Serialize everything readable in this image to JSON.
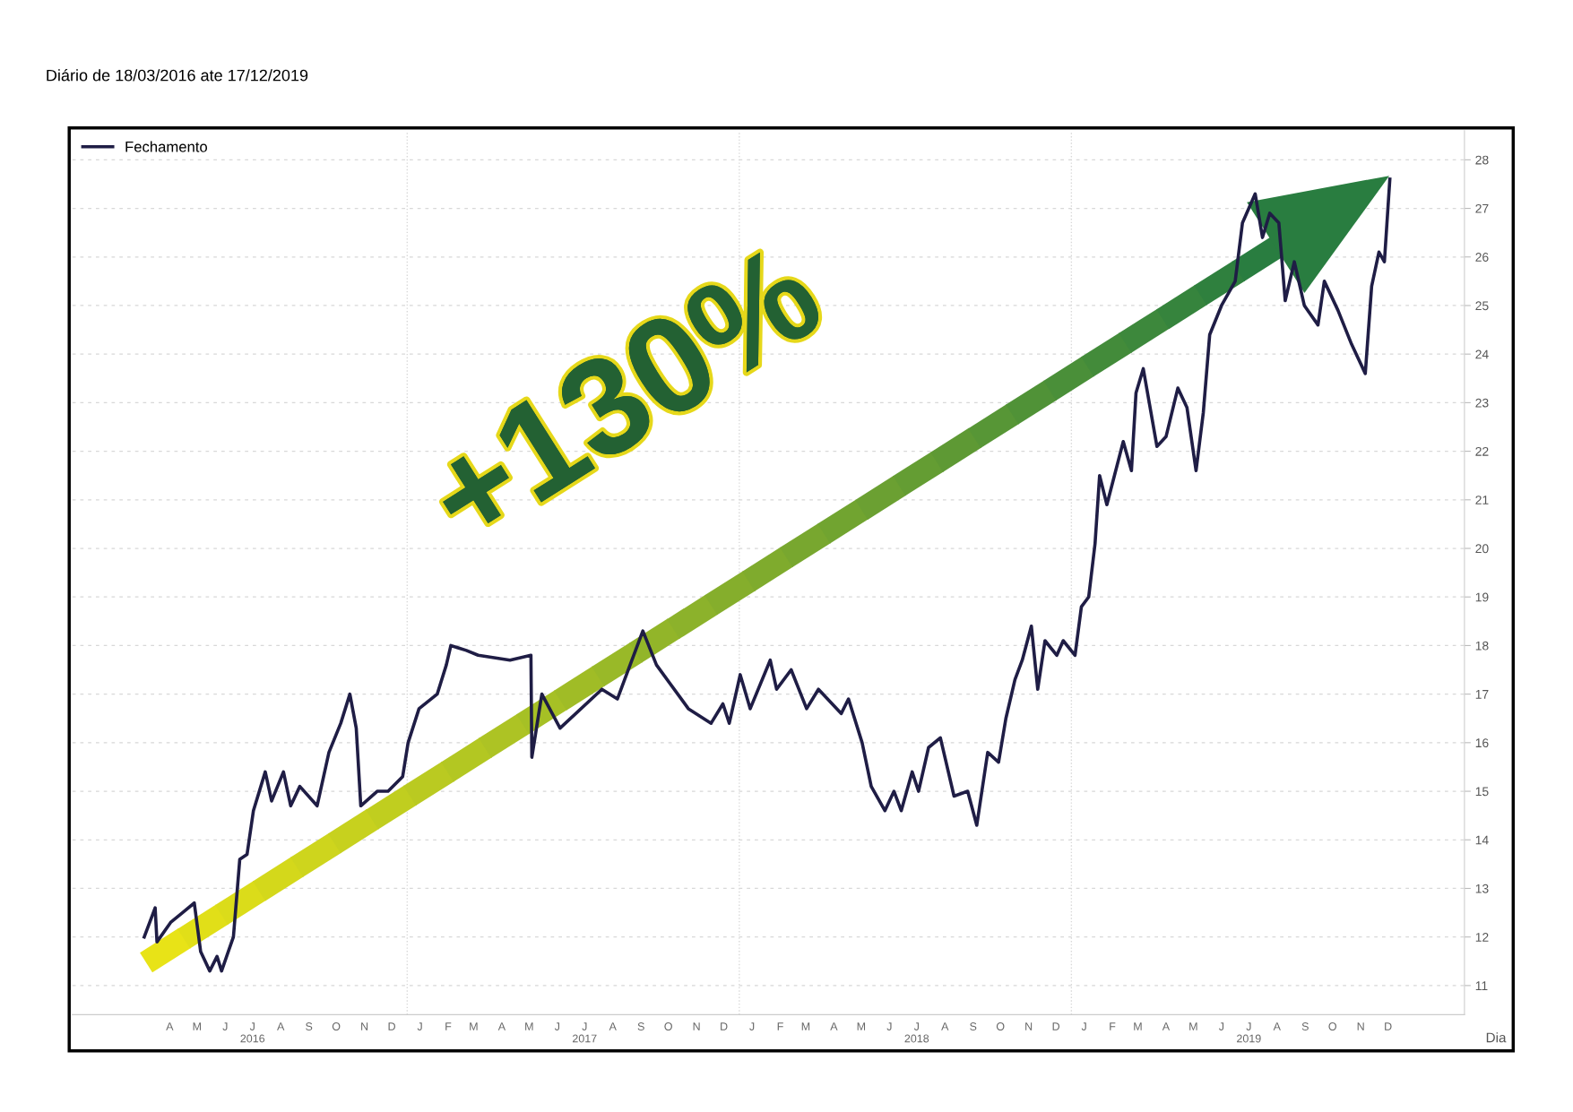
{
  "chart_data": {
    "type": "line",
    "title": "Diário de 18/03/2016 ate 17/12/2019",
    "xlabel": "Dia",
    "annotations": [
      "+130%"
    ],
    "x": [
      "2016-03-18",
      "2016-03-30",
      "2016-04-01",
      "2016-04-16",
      "2016-04-29",
      "2016-05-12",
      "2016-05-19",
      "2016-05-29",
      "2016-06-06",
      "2016-06-11",
      "2016-06-24",
      "2016-07-01",
      "2016-07-09",
      "2016-07-16",
      "2016-07-29",
      "2016-08-05",
      "2016-08-18",
      "2016-08-26",
      "2016-09-05",
      "2016-09-24",
      "2016-10-07",
      "2016-10-20",
      "2016-10-30",
      "2016-11-06",
      "2016-11-11",
      "2016-11-29",
      "2016-12-11",
      "2016-12-27",
      "2017-01-02",
      "2017-01-14",
      "2017-02-03",
      "2017-02-13",
      "2017-02-18",
      "2017-03-07",
      "2017-03-20",
      "2017-04-24",
      "2017-05-17",
      "2017-05-18",
      "2017-05-29",
      "2017-06-18",
      "2017-08-03",
      "2017-08-20",
      "2017-09-17",
      "2017-10-02",
      "2017-11-06",
      "2017-12-01",
      "2017-12-14",
      "2017-12-21",
      "2018-01-02",
      "2018-01-13",
      "2018-02-04",
      "2018-02-11",
      "2018-02-27",
      "2018-03-16",
      "2018-03-29",
      "2018-04-23",
      "2018-05-01",
      "2018-05-16",
      "2018-05-26",
      "2018-06-10",
      "2018-06-20",
      "2018-06-28",
      "2018-07-10",
      "2018-07-17",
      "2018-07-28",
      "2018-08-10",
      "2018-08-25",
      "2018-09-09",
      "2018-09-19",
      "2018-10-01",
      "2018-10-13",
      "2018-10-21",
      "2018-10-31",
      "2018-11-08",
      "2018-11-18",
      "2018-11-25",
      "2018-12-03",
      "2018-12-16",
      "2018-12-23",
      "2019-01-05",
      "2019-01-12",
      "2019-01-20",
      "2019-01-27",
      "2019-02-01",
      "2019-02-09",
      "2019-02-27",
      "2019-03-08",
      "2019-03-13",
      "2019-03-21",
      "2019-04-05",
      "2019-04-15",
      "2019-04-28",
      "2019-05-08",
      "2019-05-18",
      "2019-05-26",
      "2019-06-02",
      "2019-06-15",
      "2019-06-30",
      "2019-07-08",
      "2019-07-22",
      "2019-07-30",
      "2019-08-07",
      "2019-08-17",
      "2019-08-24",
      "2019-09-03",
      "2019-09-14",
      "2019-09-29",
      "2019-10-06",
      "2019-10-21",
      "2019-11-05",
      "2019-11-20",
      "2019-11-27",
      "2019-12-05",
      "2019-12-11",
      "2019-12-17"
    ],
    "series": [
      {
        "name": "Fechamento",
        "color": "#1f1d45",
        "values": [
          12.0,
          12.6,
          11.9,
          12.3,
          12.5,
          12.7,
          11.7,
          11.3,
          11.6,
          11.3,
          12.0,
          13.6,
          13.7,
          14.6,
          15.4,
          14.8,
          15.4,
          14.7,
          15.1,
          14.7,
          15.8,
          16.4,
          17.0,
          16.3,
          14.7,
          15.0,
          15.0,
          15.3,
          16.0,
          16.7,
          17.0,
          17.6,
          18.0,
          17.9,
          17.8,
          17.7,
          17.8,
          15.7,
          17.0,
          16.3,
          17.1,
          16.9,
          18.3,
          17.6,
          16.7,
          16.4,
          16.8,
          16.4,
          17.4,
          16.7,
          17.7,
          17.1,
          17.5,
          16.7,
          17.1,
          16.6,
          16.9,
          16.0,
          15.1,
          14.6,
          15.0,
          14.6,
          15.4,
          15.0,
          15.9,
          16.1,
          14.9,
          15.0,
          14.3,
          15.8,
          15.6,
          16.5,
          17.3,
          17.7,
          18.4,
          17.1,
          18.1,
          17.8,
          18.1,
          17.8,
          18.8,
          19.0,
          20.1,
          21.5,
          20.9,
          22.2,
          21.6,
          23.2,
          23.7,
          22.1,
          22.3,
          23.3,
          22.9,
          21.6,
          22.8,
          24.4,
          25.0,
          25.5,
          26.7,
          27.3,
          26.4,
          26.9,
          26.7,
          25.1,
          25.9,
          25.0,
          24.6,
          25.5,
          24.9,
          24.2,
          23.6,
          25.4,
          26.1,
          25.9,
          27.6
        ]
      }
    ],
    "xlim": [
      "2015-12-30",
      "2020-03-08"
    ],
    "ylim": [
      10.4,
      28.6
    ],
    "yticks": [
      11,
      12,
      13,
      14,
      15,
      16,
      17,
      18,
      19,
      20,
      21,
      22,
      23,
      24,
      25,
      26,
      27,
      28
    ],
    "xticks": [
      {
        "value": "2016-04-15",
        "label": "A"
      },
      {
        "value": "2016-05-15",
        "label": "M"
      },
      {
        "value": "2016-06-15",
        "label": "J"
      },
      {
        "value": "2016-07-15",
        "label": "J\n2016"
      },
      {
        "value": "2016-08-15",
        "label": "A"
      },
      {
        "value": "2016-09-15",
        "label": "S"
      },
      {
        "value": "2016-10-15",
        "label": "O"
      },
      {
        "value": "2016-11-15",
        "label": "N"
      },
      {
        "value": "2016-12-15",
        "label": "D"
      },
      {
        "value": "2017-01-15",
        "label": "J"
      },
      {
        "value": "2017-02-15",
        "label": "F"
      },
      {
        "value": "2017-03-15",
        "label": "M"
      },
      {
        "value": "2017-04-15",
        "label": "A"
      },
      {
        "value": "2017-05-15",
        "label": "M"
      },
      {
        "value": "2017-06-15",
        "label": "J"
      },
      {
        "value": "2017-07-15",
        "label": "J\n2017"
      },
      {
        "value": "2017-08-15",
        "label": "A"
      },
      {
        "value": "2017-09-15",
        "label": "S"
      },
      {
        "value": "2017-10-15",
        "label": "O"
      },
      {
        "value": "2017-11-15",
        "label": "N"
      },
      {
        "value": "2017-12-15",
        "label": "D"
      },
      {
        "value": "2018-01-15",
        "label": "J"
      },
      {
        "value": "2018-02-15",
        "label": "F"
      },
      {
        "value": "2018-03-15",
        "label": "M"
      },
      {
        "value": "2018-04-15",
        "label": "A"
      },
      {
        "value": "2018-05-15",
        "label": "M"
      },
      {
        "value": "2018-06-15",
        "label": "J"
      },
      {
        "value": "2018-07-15",
        "label": "J\n2018"
      },
      {
        "value": "2018-08-15",
        "label": "A"
      },
      {
        "value": "2018-09-15",
        "label": "S"
      },
      {
        "value": "2018-10-15",
        "label": "O"
      },
      {
        "value": "2018-11-15",
        "label": "N"
      },
      {
        "value": "2018-12-15",
        "label": "D"
      },
      {
        "value": "2019-01-15",
        "label": "J"
      },
      {
        "value": "2019-02-15",
        "label": "F"
      },
      {
        "value": "2019-03-15",
        "label": "M"
      },
      {
        "value": "2019-04-15",
        "label": "A"
      },
      {
        "value": "2019-05-15",
        "label": "M"
      },
      {
        "value": "2019-06-15",
        "label": "J"
      },
      {
        "value": "2019-07-15",
        "label": "J\n2019"
      },
      {
        "value": "2019-08-15",
        "label": "A"
      },
      {
        "value": "2019-09-15",
        "label": "S"
      },
      {
        "value": "2019-10-15",
        "label": "O"
      },
      {
        "value": "2019-11-15",
        "label": "N"
      },
      {
        "value": "2019-12-15",
        "label": "D"
      }
    ],
    "ref_lines": [
      {
        "axis": "x",
        "value": "2017-01-01",
        "color": "#d8d8d8",
        "line_style": "dotted"
      },
      {
        "axis": "x",
        "value": "2018-01-01",
        "color": "#d8d8d8",
        "line_style": "dotted"
      },
      {
        "axis": "x",
        "value": "2019-01-01",
        "color": "#d8d8d8",
        "line_style": "dotted"
      }
    ],
    "grid": "y",
    "legend": "top left",
    "line_style": "solid",
    "marker": "none"
  }
}
